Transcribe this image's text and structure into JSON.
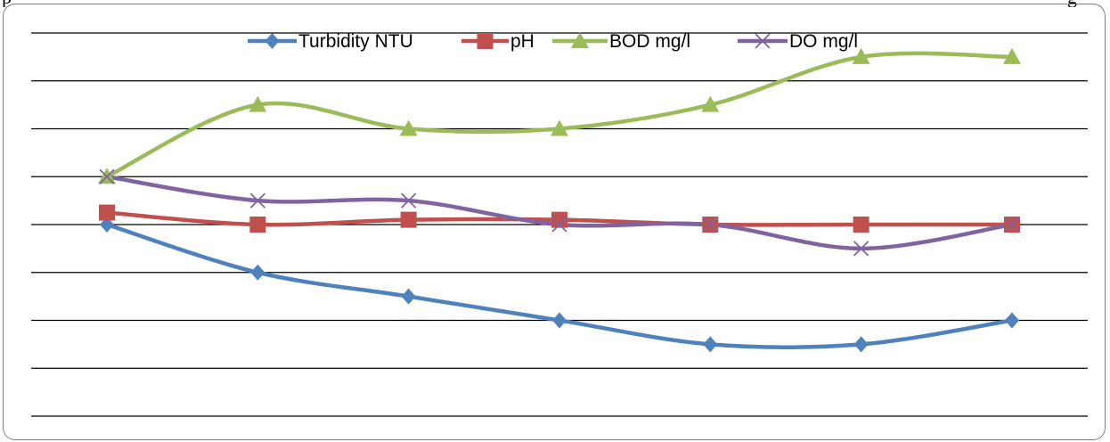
{
  "top_text": {
    "left": "p",
    "right": "g"
  },
  "chart_data": {
    "type": "line",
    "smooth": true,
    "grid": "horizontal",
    "legend_position": "top",
    "x": [
      1,
      2,
      3,
      4,
      5,
      6,
      7
    ],
    "ylim": [
      0,
      16
    ],
    "series": [
      {
        "name": "Turbidity NTU",
        "color": "#4f81bd",
        "marker": "diamond",
        "values": [
          8,
          6,
          5,
          4,
          3,
          3,
          4
        ]
      },
      {
        "name": "pH",
        "color": "#c0504d",
        "marker": "square",
        "values": [
          8.5,
          8,
          8.2,
          8.2,
          8,
          8,
          8
        ]
      },
      {
        "name": "BOD mg/l",
        "color": "#9bbb59",
        "marker": "triangle",
        "values": [
          10,
          13,
          12,
          12,
          13,
          15,
          15
        ]
      },
      {
        "name": "DO mg/l",
        "color": "#8064a2",
        "marker": "x",
        "values": [
          10,
          9,
          9,
          8,
          8,
          7,
          8
        ]
      }
    ]
  }
}
